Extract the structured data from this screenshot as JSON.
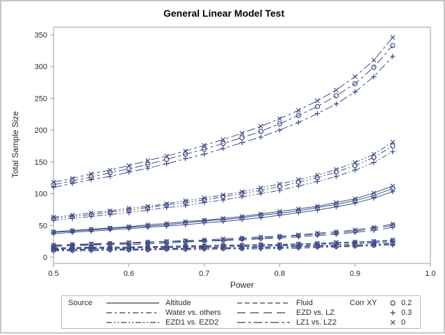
{
  "title": "General Linear Model Test",
  "colors": {
    "series": "#3e4c87",
    "frame": "#9b9b9b",
    "tick_text": "#2b2b2b",
    "legend_ink": "#3f3f3f",
    "legend_border": "#b8b8b8"
  },
  "axes": {
    "x": {
      "label": "Power",
      "range": [
        0.5,
        1.0
      ],
      "ticks": [
        "0.5",
        "0.6",
        "0.7",
        "0.8",
        "0.9",
        "1.0"
      ],
      "tick_values": [
        0.5,
        0.6,
        0.7,
        0.8,
        0.9,
        1.0
      ]
    },
    "y": {
      "label": "Total Sample Size",
      "range": [
        0,
        350
      ],
      "ticks": [
        "0",
        "50",
        "100",
        "150",
        "200",
        "250",
        "300",
        "350"
      ],
      "tick_values": [
        0,
        50,
        100,
        150,
        200,
        250,
        300,
        350
      ]
    }
  },
  "legend": {
    "source_label": "Source",
    "corr_label": "Corr XY",
    "sources": [
      {
        "name": "Altitude",
        "dash": ""
      },
      {
        "name": "Water vs. others",
        "dash": "8 4 3 4"
      },
      {
        "name": "EZD1 vs. EZD2",
        "dash": "8 3 2 3 2 3"
      },
      {
        "name": "Fluid",
        "dash": "7 4"
      },
      {
        "name": "EZD vs. LZ",
        "dash": "12 7"
      },
      {
        "name": "LZ1 vs. LZ2",
        "dash": "12 4 4 4"
      }
    ],
    "corr_levels": [
      {
        "marker": "circle",
        "label": "0.2"
      },
      {
        "marker": "plus",
        "label": "0.3"
      },
      {
        "marker": "x",
        "label": "0"
      }
    ]
  },
  "chart_data": {
    "type": "line",
    "title": "General Linear Model Test",
    "xlabel": "Power",
    "ylabel": "Total Sample Size",
    "xlim": [
      0.5,
      1.0
    ],
    "ylim": [
      0,
      350
    ],
    "grid": false,
    "legend_position": "bottom",
    "x": [
      0.5,
      0.525,
      0.55,
      0.575,
      0.6,
      0.625,
      0.65,
      0.675,
      0.7,
      0.725,
      0.75,
      0.775,
      0.8,
      0.825,
      0.85,
      0.875,
      0.9,
      0.925,
      0.95
    ],
    "series": [
      {
        "source": "LZ1 vs. LZ2",
        "corr": "0",
        "marker": "x",
        "values": [
          118,
          124,
          131,
          137,
          144,
          152,
          159,
          167,
          176,
          185,
          195,
          206,
          218,
          231,
          246,
          263,
          284,
          310,
          346
        ]
      },
      {
        "source": "LZ1 vs. LZ2",
        "corr": "0.2",
        "marker": "circle",
        "values": [
          114,
          120,
          126,
          133,
          139,
          146,
          154,
          162,
          170,
          179,
          188,
          198,
          210,
          223,
          237,
          254,
          273,
          299,
          333
        ]
      },
      {
        "source": "LZ1 vs. LZ2",
        "corr": "0.3",
        "marker": "plus",
        "values": [
          110,
          116,
          122,
          127,
          134,
          140,
          147,
          155,
          162,
          171,
          180,
          189,
          200,
          212,
          226,
          241,
          260,
          284,
          316
        ]
      },
      {
        "source": "EZD1 vs. EZD2",
        "corr": "0",
        "marker": "x",
        "values": [
          63,
          66,
          70,
          73,
          77,
          80,
          84,
          89,
          93,
          98,
          103,
          109,
          115,
          122,
          129,
          138,
          149,
          162,
          181
        ]
      },
      {
        "source": "EZD1 vs. EZD2",
        "corr": "0.2",
        "marker": "circle",
        "values": [
          61,
          64,
          67,
          71,
          74,
          78,
          82,
          86,
          90,
          95,
          100,
          105,
          111,
          118,
          125,
          134,
          144,
          157,
          175
        ]
      },
      {
        "source": "EZD1 vs. EZD2",
        "corr": "0.3",
        "marker": "plus",
        "values": [
          58,
          61,
          64,
          67,
          70,
          74,
          78,
          81,
          86,
          90,
          95,
          100,
          105,
          112,
          119,
          127,
          137,
          149,
          166
        ]
      },
      {
        "source": "Altitude",
        "corr": "0",
        "marker": "x",
        "values": [
          40,
          42,
          44,
          46,
          48,
          51,
          53,
          56,
          58,
          61,
          64,
          68,
          72,
          76,
          80,
          86,
          92,
          101,
          112
        ]
      },
      {
        "source": "Altitude",
        "corr": "0.2",
        "marker": "circle",
        "values": [
          39,
          41,
          43,
          45,
          47,
          49,
          51,
          54,
          57,
          59,
          62,
          66,
          69,
          73,
          78,
          83,
          89,
          97,
          108
        ]
      },
      {
        "source": "Altitude",
        "corr": "0.3",
        "marker": "plus",
        "values": [
          37,
          39,
          41,
          43,
          45,
          47,
          49,
          51,
          54,
          56,
          59,
          62,
          66,
          70,
          74,
          79,
          85,
          93,
          103
        ]
      },
      {
        "source": "EZD vs. LZ",
        "corr": "0",
        "marker": "x",
        "values": [
          19,
          20,
          21,
          22,
          23,
          24,
          25,
          26,
          27,
          29,
          30,
          32,
          33,
          35,
          38,
          40,
          43,
          47,
          52
        ]
      },
      {
        "source": "EZD vs. LZ",
        "corr": "0.2",
        "marker": "circle",
        "values": [
          18,
          19,
          20,
          21,
          22,
          23,
          24,
          25,
          26,
          27,
          29,
          30,
          32,
          34,
          36,
          38,
          41,
          45,
          50
        ]
      },
      {
        "source": "EZD vs. LZ",
        "corr": "0.3",
        "marker": "plus",
        "values": [
          17,
          18,
          19,
          20,
          20,
          21,
          22,
          24,
          25,
          26,
          27,
          29,
          30,
          32,
          34,
          36,
          39,
          42,
          47
        ]
      },
      {
        "source": "Fluid",
        "corr": "0",
        "marker": "x",
        "values": [
          15,
          15,
          16,
          16,
          16,
          17,
          17,
          18,
          18,
          19,
          19,
          20,
          20,
          21,
          22,
          23,
          24,
          25,
          27
        ]
      },
      {
        "source": "Fluid",
        "corr": "0.2",
        "marker": "circle",
        "values": [
          14,
          14,
          15,
          15,
          15,
          16,
          16,
          17,
          17,
          18,
          18,
          19,
          19,
          20,
          21,
          22,
          23,
          24,
          26
        ]
      },
      {
        "source": "Fluid",
        "corr": "0.3",
        "marker": "plus",
        "values": [
          13,
          13,
          14,
          14,
          14,
          15,
          15,
          15,
          16,
          16,
          17,
          17,
          18,
          18,
          19,
          20,
          21,
          22,
          24
        ]
      },
      {
        "source": "Water vs. others",
        "corr": "0",
        "marker": "x",
        "values": [
          12,
          12,
          13,
          13,
          13,
          13,
          14,
          14,
          15,
          15,
          15,
          16,
          16,
          17,
          18,
          18,
          19,
          20,
          22
        ]
      },
      {
        "source": "Water vs. others",
        "corr": "0.2",
        "marker": "circle",
        "values": [
          11,
          11,
          12,
          12,
          12,
          12,
          13,
          13,
          14,
          14,
          14,
          15,
          15,
          16,
          17,
          17,
          18,
          19,
          21
        ]
      },
      {
        "source": "Water vs. others",
        "corr": "0.3",
        "marker": "plus",
        "values": [
          10,
          10,
          10,
          11,
          11,
          11,
          12,
          12,
          12,
          13,
          13,
          13,
          14,
          14,
          15,
          16,
          17,
          18,
          19
        ]
      }
    ]
  }
}
